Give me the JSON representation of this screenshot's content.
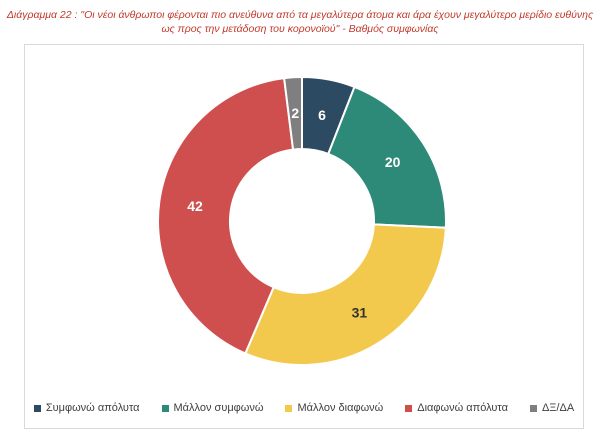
{
  "title_line1": "Διάγραμμα 22 : \"Οι νέοι άνθρωποι φέρονται πιο ανεύθυνα από τα μεγαλύτερα άτομα και άρα έχουν μεγαλύτερο μερίδιο ευθύνης",
  "title_line2": "ως προς την μετάδοση του κορονοϊού\" - Βαθμός συμφωνίας",
  "chart_data": {
    "type": "pie",
    "donut": true,
    "categories": [
      "Συμφωνώ απόλυτα",
      "Μάλλον συμφωνώ",
      "Μάλλον διαφωνώ",
      "Διαφωνώ απόλυτα",
      "ΔΞ/ΔΑ"
    ],
    "values": [
      6,
      20,
      31,
      42,
      2
    ],
    "colors": [
      "#2d4a63",
      "#2e8a78",
      "#f2c94c",
      "#cf4f4f",
      "#7f7f7f"
    ],
    "label_colors": [
      "#ffffff",
      "#ffffff",
      "#333333",
      "#ffffff",
      "#ffffff"
    ],
    "legend_position": "bottom"
  }
}
